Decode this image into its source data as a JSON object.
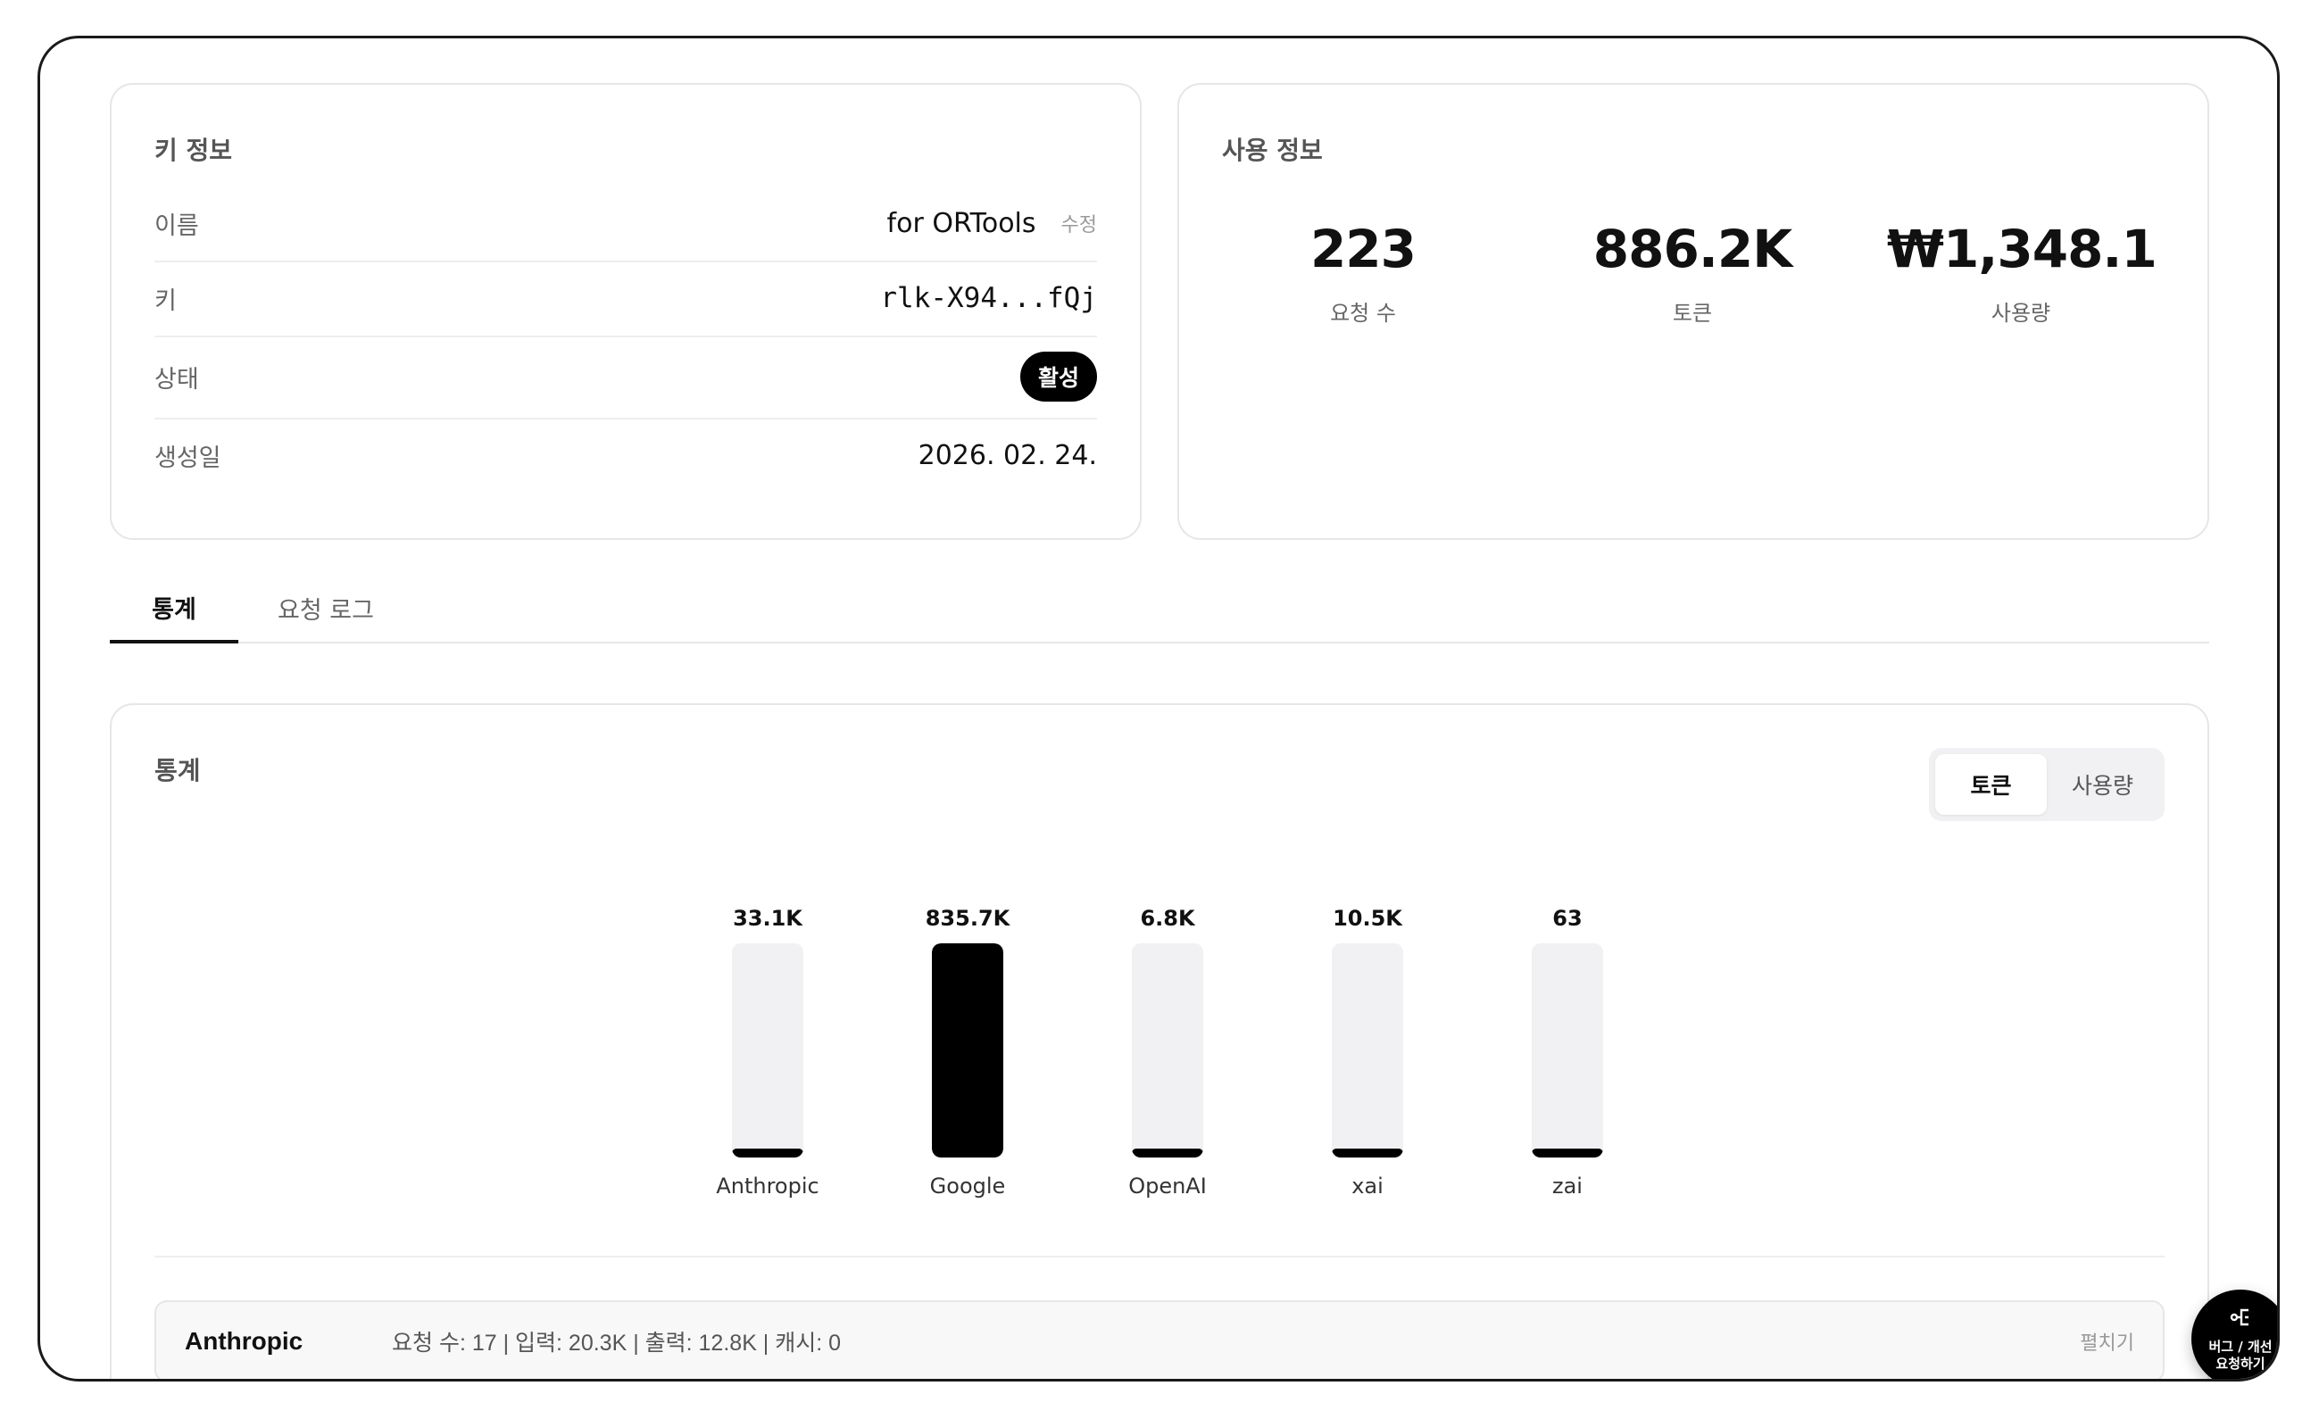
{
  "key_info": {
    "title": "키 정보",
    "rows": [
      {
        "label": "이름",
        "value": "for ORTools",
        "action": "수정"
      },
      {
        "label": "키",
        "value": "rlk-X94...fQj"
      },
      {
        "label": "상태",
        "value": "활성"
      },
      {
        "label": "생성일",
        "value": "2026. 02. 24."
      }
    ]
  },
  "usage_info": {
    "title": "사용 정보",
    "stats": [
      {
        "value": "223",
        "label": "요청 수"
      },
      {
        "value": "886.2K",
        "label": "토큰"
      },
      {
        "value": "₩1,348.1",
        "label": "사용량"
      }
    ]
  },
  "tabs": [
    {
      "label": "통계",
      "active": true
    },
    {
      "label": "요청 로그",
      "active": false
    }
  ],
  "stats_panel": {
    "title": "통계",
    "toggle": [
      {
        "label": "토큰",
        "active": true
      },
      {
        "label": "사용량",
        "active": false
      }
    ]
  },
  "chart_data": {
    "type": "bar",
    "categories": [
      "Anthropic",
      "Google",
      "OpenAI",
      "xai",
      "zai"
    ],
    "values": [
      33100,
      835700,
      6800,
      10500,
      63
    ],
    "value_labels": [
      "33.1K",
      "835.7K",
      "6.8K",
      "10.5K",
      "63"
    ],
    "title": "",
    "xlabel": "",
    "ylabel": "",
    "grid": false
  },
  "provider_row": {
    "name": "Anthropic",
    "stats": "요청 수: 17 | 입력: 20.3K | 출력: 12.8K | 캐시: 0",
    "action": "펼치기"
  },
  "fab": {
    "icon": "branch-icon",
    "line1": "버그 / 개선",
    "line2": "요청하기"
  },
  "colors": {
    "accent": "#000000",
    "track": "#f1f1f3",
    "border": "#e6e6e6"
  }
}
